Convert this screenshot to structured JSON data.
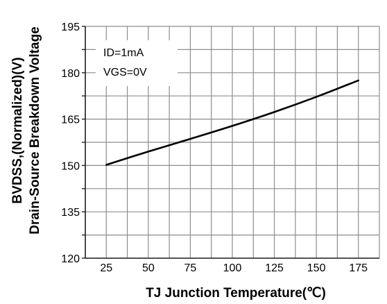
{
  "chart_data": {
    "type": "line",
    "title": "",
    "xlabel": "TJ  Junction Temperature(℃)",
    "ylabel_lines": [
      "BVDSS,(Normalized)(V)",
      "Drain-Source Breakdown Voltage"
    ],
    "x_ticks": [
      "25",
      "50",
      "75",
      "100",
      "125",
      "150",
      "175"
    ],
    "y_ticks": [
      "195",
      "180",
      "165",
      "150",
      "135",
      "120"
    ],
    "xlim": [
      12.5,
      187.5
    ],
    "ylim": [
      120,
      195
    ],
    "grid": true,
    "annotations": [
      "ID=1mA",
      "VGS=0V"
    ],
    "series": [
      {
        "x": [
          25,
          50,
          75,
          100,
          125,
          150,
          175
        ],
        "y": [
          150.2,
          154.5,
          158.6,
          162.8,
          167.3,
          172.2,
          177.5
        ]
      }
    ],
    "line_color": "#000000",
    "grid_color": "#8c8c8c"
  }
}
